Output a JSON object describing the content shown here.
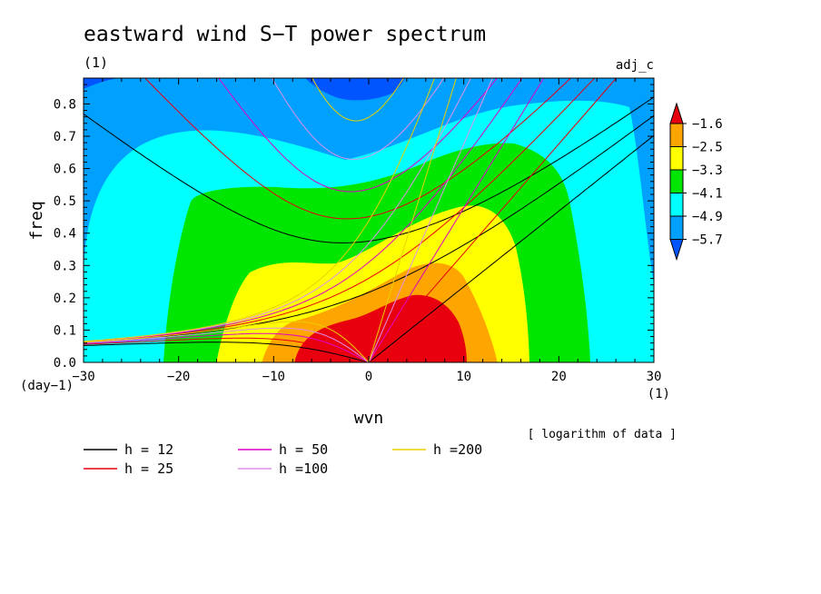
{
  "chart_data": {
    "type": "heatmap",
    "title": "eastward wind S−T power spectrum",
    "title_units": "(1)",
    "corner_label": "adj_c",
    "xlabel": "wvn",
    "ylabel": "freq",
    "x_units": "(1)",
    "y_units": "(day−1)",
    "xlim": [
      -30,
      30
    ],
    "ylim": [
      0,
      0.88
    ],
    "x_ticks": [
      "−30",
      "−20",
      "−10",
      "0",
      "10",
      "20",
      "30"
    ],
    "y_ticks": [
      "0.0",
      "0.1",
      "0.2",
      "0.3",
      "0.4",
      "0.5",
      "0.6",
      "0.7",
      "0.8"
    ],
    "note": "[ logarithm of data ]",
    "colorbar": {
      "levels": [
        "−1.6",
        "−2.5",
        "−3.3",
        "−4.1",
        "−4.9",
        "−5.7"
      ],
      "colors": [
        "#e8000e",
        "#ffa500",
        "#ffff00",
        "#00e600",
        "#00ffff",
        "#00a0ff",
        "#0055ff"
      ]
    },
    "dispersion_curves": [
      {
        "name": "h = 12",
        "h": 12,
        "color": "#000000"
      },
      {
        "name": "h = 25",
        "h": 25,
        "color": "#e8000e"
      },
      {
        "name": "h = 50",
        "h": 50,
        "color": "#e000c8"
      },
      {
        "name": "h =100",
        "h": 100,
        "color": "#e090e8"
      },
      {
        "name": "h =200",
        "h": 200,
        "color": "#e8d000"
      }
    ]
  }
}
